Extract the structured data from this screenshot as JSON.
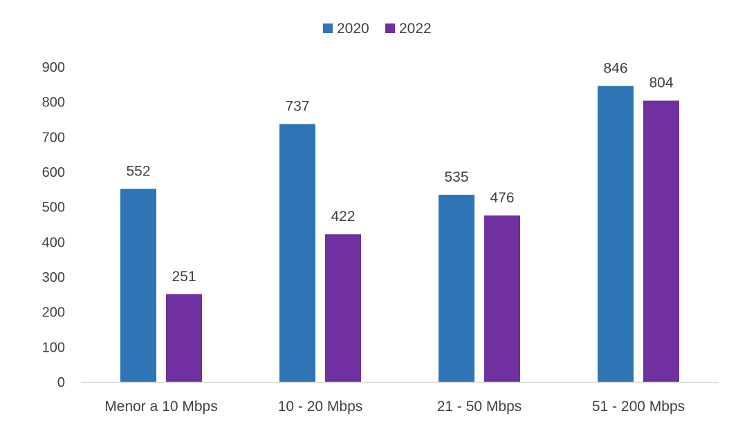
{
  "chart_data": {
    "type": "bar",
    "categories": [
      "Menor a 10 Mbps",
      "10 - 20 Mbps",
      "21 - 50 Mbps",
      "51 - 200 Mbps"
    ],
    "series": [
      {
        "name": "2020",
        "color": "#2E75B6",
        "values": [
          552,
          737,
          535,
          846
        ]
      },
      {
        "name": "2022",
        "color": "#7030A0",
        "values": [
          251,
          422,
          476,
          804
        ]
      }
    ],
    "ylim": [
      0,
      900
    ],
    "yticks": [
      0,
      100,
      200,
      300,
      400,
      500,
      600,
      700,
      800,
      900
    ],
    "grid": false,
    "legend": "top-center",
    "data_labels": true
  }
}
